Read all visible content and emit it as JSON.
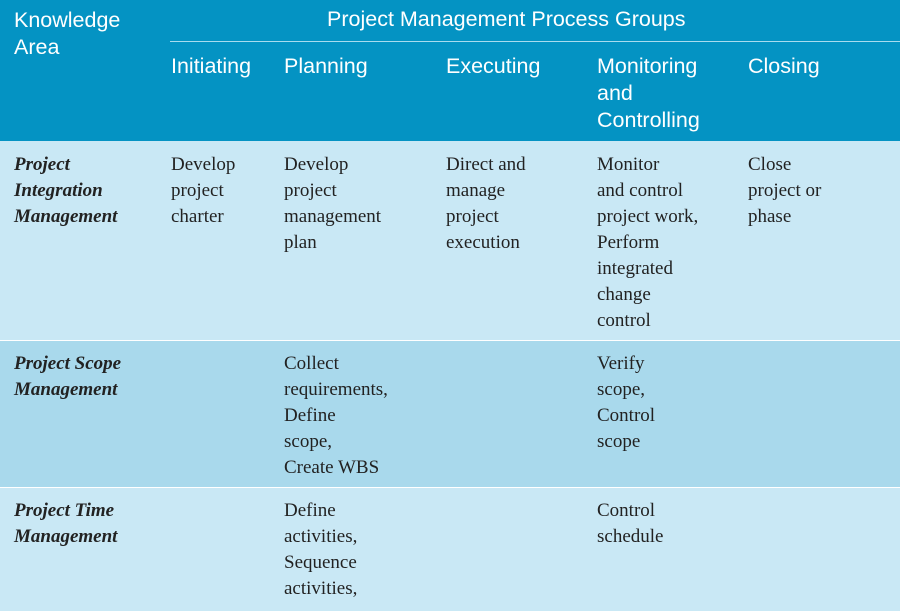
{
  "header": {
    "knowledge_area": "Knowledge\nArea",
    "process_groups_title": "Project Management Process Groups",
    "columns": [
      "Initiating",
      "Planning",
      "Executing",
      "Monitoring\nand\nControlling",
      "Closing"
    ]
  },
  "rows": [
    {
      "knowledge_area": "Project\nIntegration\nManagement",
      "initiating": "Develop\nproject\ncharter",
      "planning": "Develop\nproject\nmanagement\nplan",
      "executing": "Direct and\nmanage\nproject\nexecution",
      "monitoring": "Monitor\nand control\nproject work,\nPerform\nintegrated\nchange\ncontrol",
      "closing": "Close\nproject or\nphase"
    },
    {
      "knowledge_area": "Project Scope\nManagement",
      "initiating": "",
      "planning": "Collect\nrequirements,\nDefine\nscope,\nCreate WBS",
      "executing": "",
      "monitoring": "Verify\nscope,\nControl\nscope",
      "closing": ""
    },
    {
      "knowledge_area": "Project Time\nManagement",
      "initiating": "",
      "planning": "Define\nactivities,\nSequence\nactivities,",
      "executing": "",
      "monitoring": "Control\nschedule",
      "closing": ""
    }
  ]
}
